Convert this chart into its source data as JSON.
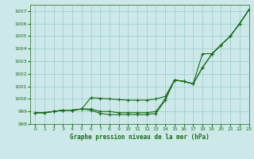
{
  "xlabel": "Graphe pression niveau de la mer (hPa)",
  "xlim": [
    -0.5,
    23
  ],
  "ylim": [
    998.2,
    1007.5
  ],
  "yticks": [
    998,
    999,
    1000,
    1001,
    1002,
    1003,
    1004,
    1005,
    1006,
    1007
  ],
  "xticks": [
    0,
    1,
    2,
    3,
    4,
    5,
    6,
    7,
    8,
    9,
    10,
    11,
    12,
    13,
    14,
    15,
    16,
    17,
    18,
    19,
    20,
    21,
    22,
    23
  ],
  "bg_color": "#cce8e8",
  "grid_color": "#99cccc",
  "line_color": "#1a6b1a",
  "line1": [
    998.9,
    998.9,
    999.0,
    999.1,
    999.1,
    999.2,
    999.1,
    998.85,
    998.75,
    998.75,
    998.75,
    998.75,
    998.75,
    998.85,
    999.9,
    1001.5,
    1001.4,
    1001.2,
    1002.5,
    1003.55,
    1004.3,
    1005.0,
    1006.0,
    1007.1
  ],
  "line2": [
    998.9,
    998.9,
    999.0,
    999.1,
    999.1,
    999.2,
    999.2,
    999.0,
    999.0,
    998.9,
    998.9,
    998.9,
    998.9,
    999.0,
    1000.0,
    1001.5,
    1001.4,
    1001.2,
    1002.5,
    1003.55,
    1004.3,
    1005.0,
    1006.0,
    1007.1
  ],
  "line3": [
    998.9,
    998.9,
    999.0,
    999.1,
    999.1,
    999.2,
    1000.1,
    1000.05,
    1000.0,
    999.95,
    999.9,
    999.9,
    999.9,
    1000.0,
    1000.2,
    1001.5,
    1001.4,
    1001.2,
    1003.6,
    1003.6,
    1004.3,
    1005.0,
    1006.0,
    1007.1
  ]
}
